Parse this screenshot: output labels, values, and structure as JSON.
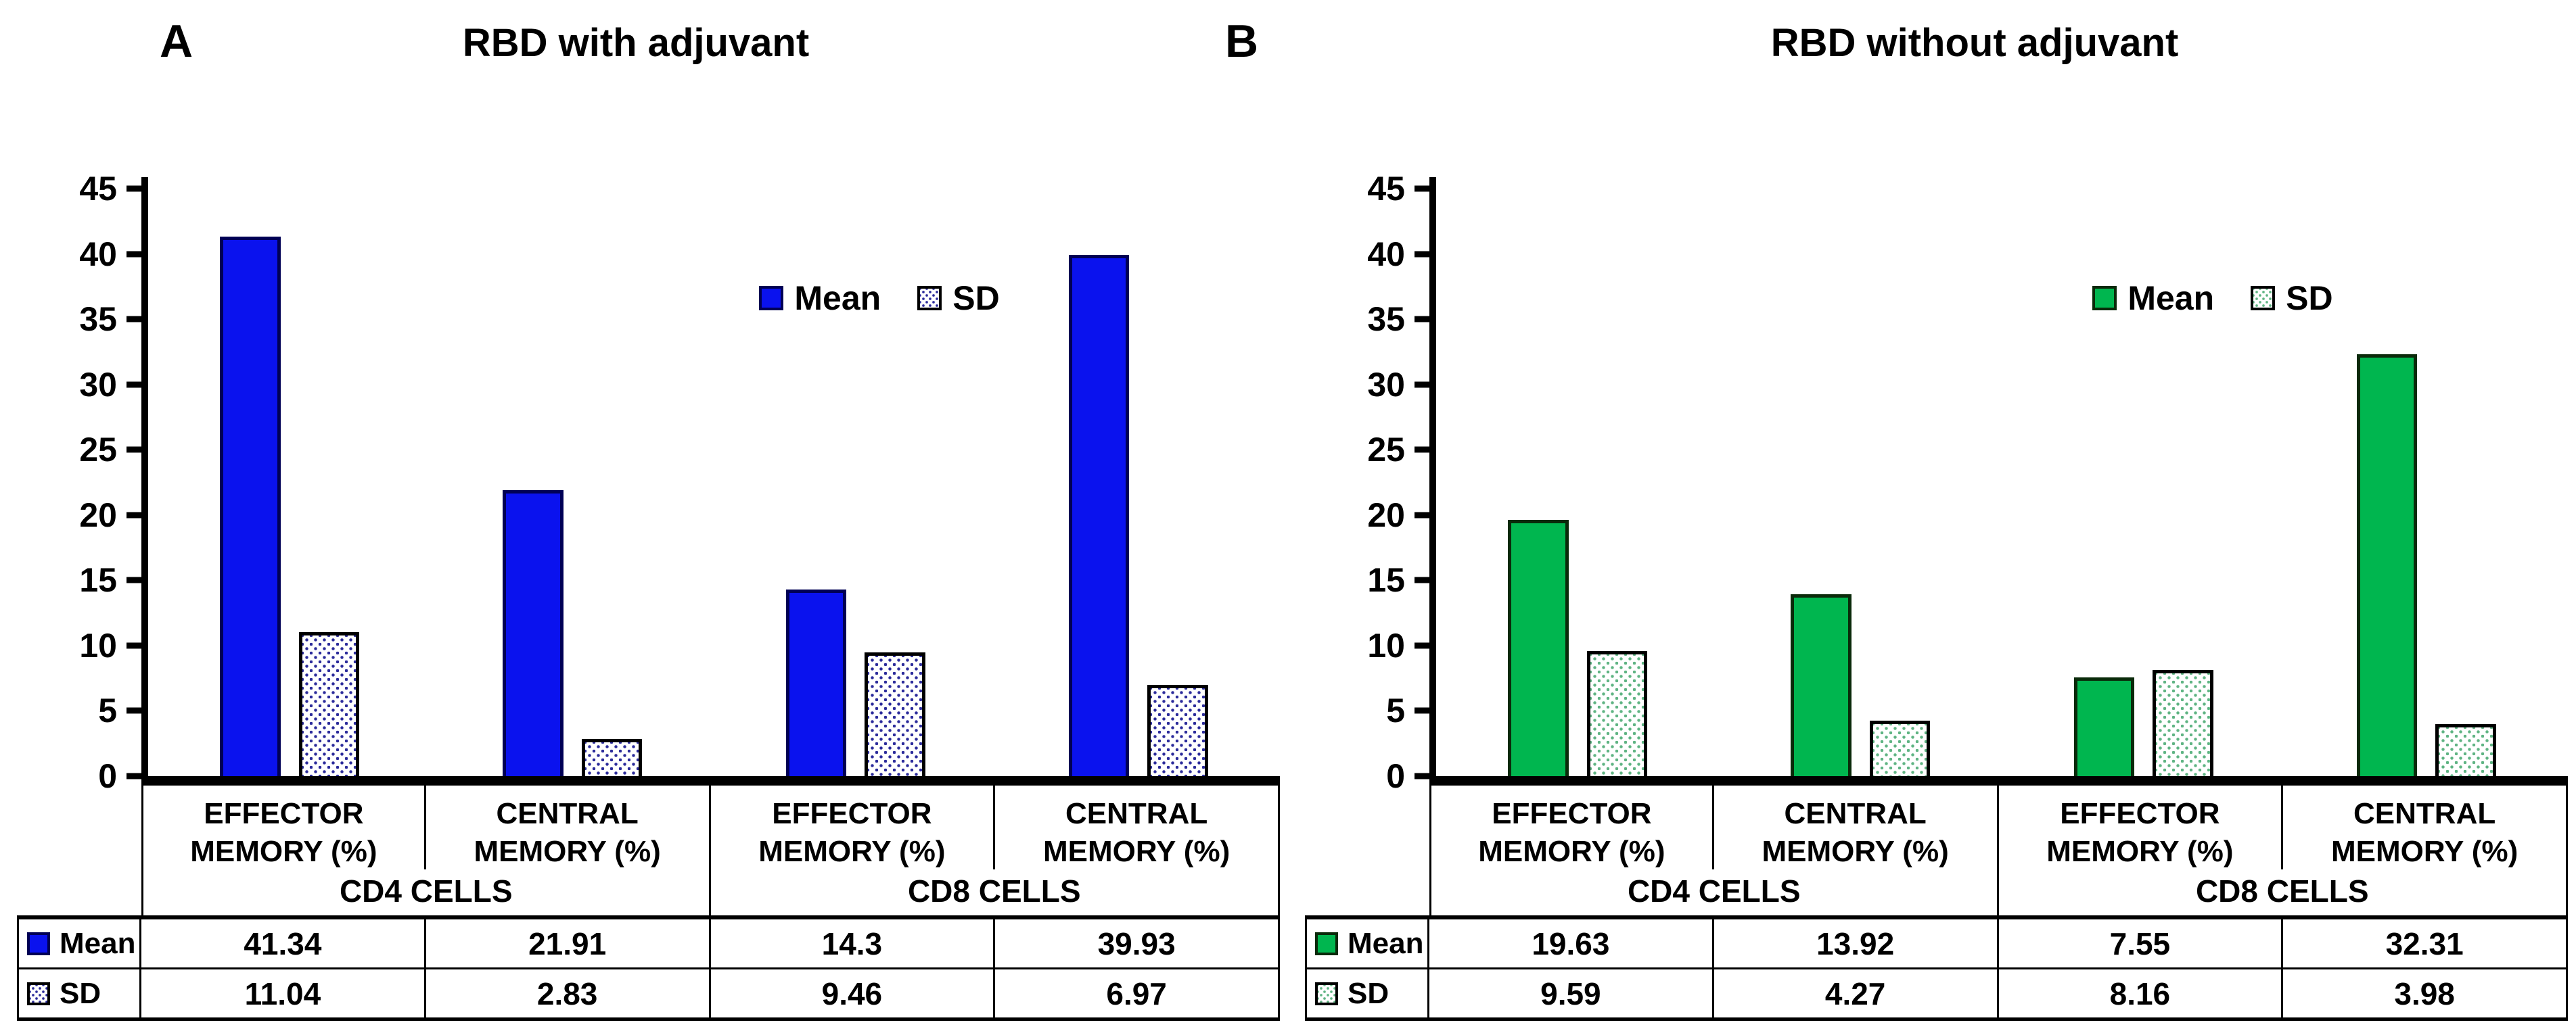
{
  "figure": {
    "background": "#ffffff",
    "text_color": "#000000"
  },
  "chart_data": [
    {
      "type": "bar",
      "panel_letter": "A",
      "title": "RBD with adjuvant",
      "categories": [
        "EFFECTOR MEMORY (%)",
        "CENTRAL MEMORY (%)",
        "EFFECTOR MEMORY (%)",
        "CENTRAL MEMORY (%)"
      ],
      "group_headers": [
        "CD4 CELLS",
        "CD8 CELLS"
      ],
      "series": [
        {
          "name": "Mean",
          "values": [
            41.34,
            21.91,
            14.3,
            39.93
          ]
        },
        {
          "name": "SD",
          "values": [
            11.04,
            2.83,
            9.46,
            6.97
          ]
        }
      ],
      "xlabel": "",
      "ylabel": "",
      "ylim": [
        0,
        45
      ],
      "y_ticks": [
        45,
        40,
        35,
        30,
        25,
        20,
        15,
        10,
        5,
        0
      ],
      "grid": false,
      "legend_position": "inside-top-center",
      "colors": {
        "mean_fill": "#0a12ee",
        "mean_border": "#000055",
        "sd_dot": "#2b2b9b",
        "sd_fill": "#ffffff"
      }
    },
    {
      "type": "bar",
      "panel_letter": "B",
      "title": "RBD without adjuvant",
      "categories": [
        "EFFECTOR MEMORY (%)",
        "CENTRAL MEMORY (%)",
        "EFFECTOR MEMORY (%)",
        "CENTRAL MEMORY (%)"
      ],
      "group_headers": [
        "CD4 CELLS",
        "CD8 CELLS"
      ],
      "series": [
        {
          "name": "Mean",
          "values": [
            19.63,
            13.92,
            7.55,
            32.31
          ]
        },
        {
          "name": "SD",
          "values": [
            9.59,
            4.27,
            8.16,
            3.98
          ]
        }
      ],
      "xlabel": "",
      "ylabel": "",
      "ylim": [
        0,
        45
      ],
      "y_ticks": [
        45,
        40,
        35,
        30,
        25,
        20,
        15,
        10,
        5,
        0
      ],
      "grid": false,
      "legend_position": "inside-top-center",
      "colors": {
        "mean_fill": "#00b64f",
        "mean_border": "#0a2a0a",
        "sd_dot": "#5fb483",
        "sd_fill": "#ffffff"
      }
    }
  ]
}
